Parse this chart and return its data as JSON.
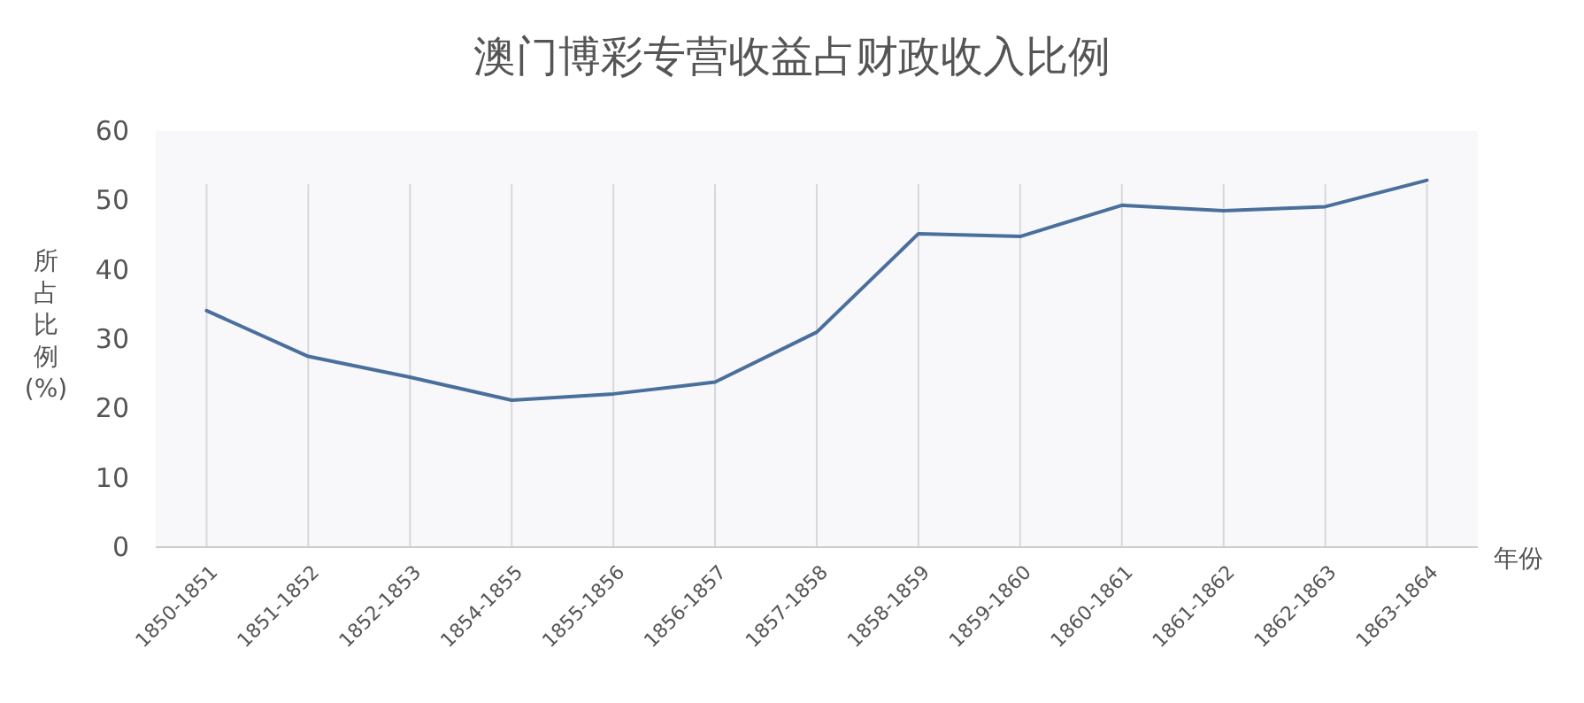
{
  "chart_data": {
    "type": "line",
    "title": "澳门博彩专营收益占财政收入比例",
    "xlabel": "年份",
    "ylabel": "所占比例(%)",
    "categories": [
      "1850-1851",
      "1851-1852",
      "1852-1853",
      "1854-1855",
      "1855-1856",
      "1856-1857",
      "1857-1858",
      "1858-1859",
      "1859-1860",
      "1860-1861",
      "1861-1862",
      "1862-1863",
      "1863-1864"
    ],
    "series": [
      {
        "color": "#4a6f9c",
        "values": [
          34.1,
          27.5,
          24.5,
          21.2,
          22.1,
          23.8,
          31,
          45.2,
          44.8,
          49.3,
          48.5,
          49.1,
          52.9
        ]
      }
    ],
    "ylim": [
      0,
      60
    ],
    "yticks": [
      0,
      10,
      20,
      30,
      40,
      50,
      60
    ],
    "grid": "x",
    "marker": "none",
    "line_style": "solid"
  }
}
